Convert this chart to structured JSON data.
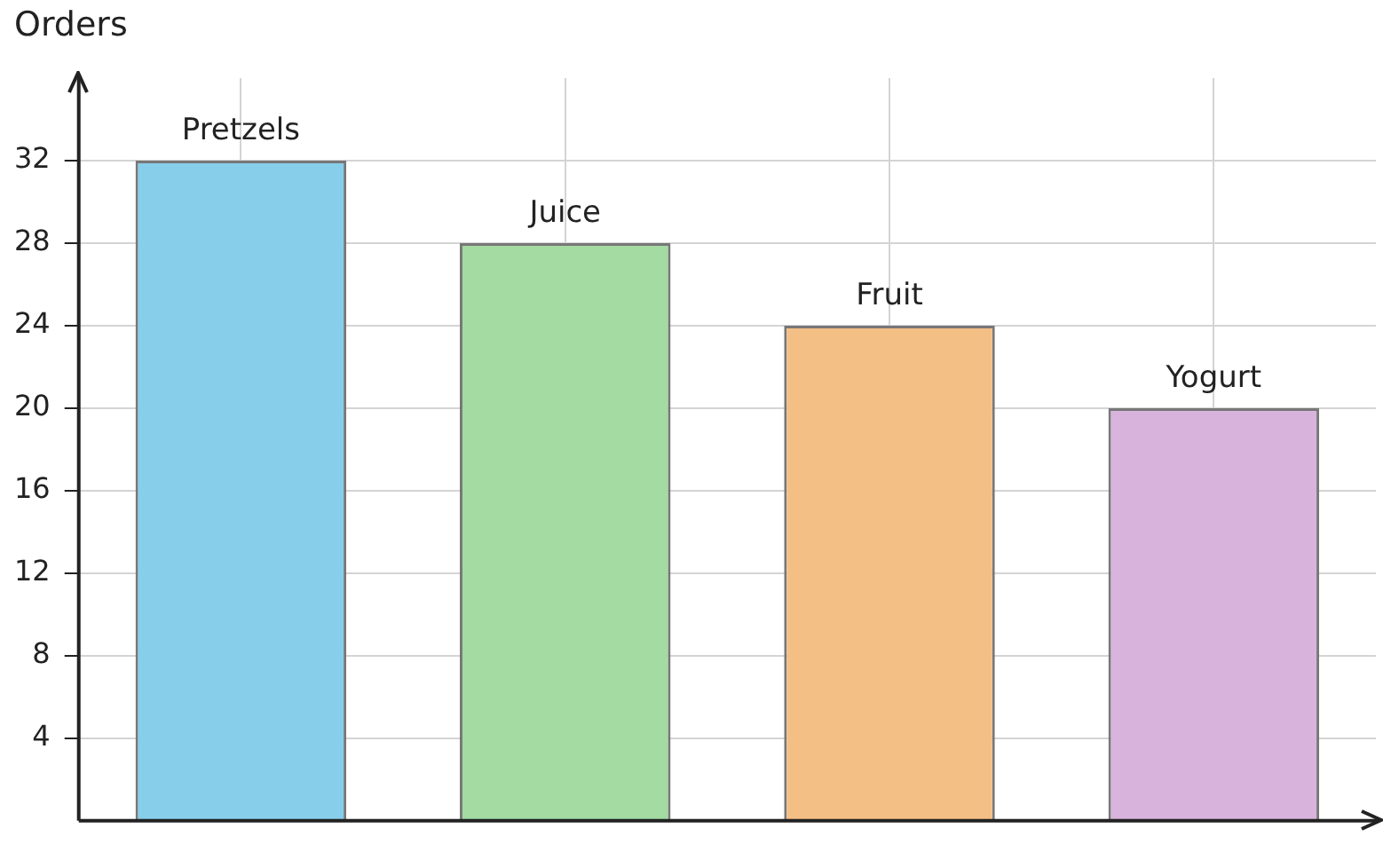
{
  "chart_data": {
    "type": "bar",
    "ylabel": "Orders",
    "categories": [
      "Pretzels",
      "Juice",
      "Fruit",
      "Yogurt"
    ],
    "values": [
      32,
      28,
      24,
      20
    ],
    "colors": [
      "#87ceeb",
      "#a3dba3",
      "#f4bf85",
      "#d8b4dc"
    ],
    "ylim": [
      0,
      36
    ],
    "yticks": [
      4,
      8,
      12,
      16,
      20,
      24,
      28,
      32
    ],
    "grid": true,
    "tick_labels": "y",
    "legend": false
  }
}
